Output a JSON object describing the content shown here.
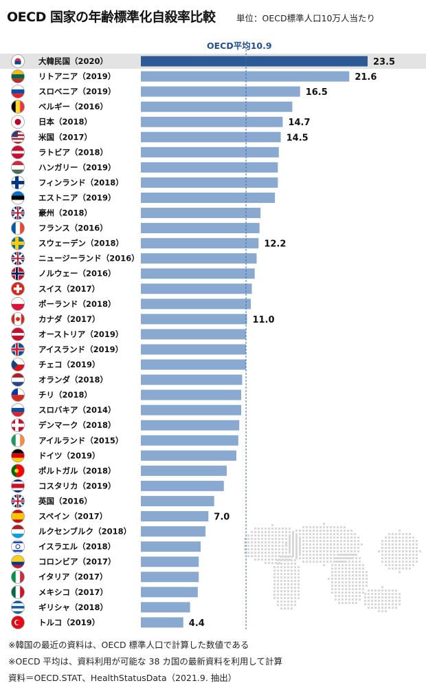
{
  "header": {
    "title": "OECD 国家の年齢標準化自殺率比較",
    "unit": "単位：OECD標準人口10万人当たり",
    "average_label": "OECD平均10.9"
  },
  "notes": [
    "※韓国の最近の資料は、OECD 標準人口で計算した数値である",
    "※OECD 平均は、資料利用が可能な 38 カ国の最新資料を利用して計算",
    "資料＝OECD.STAT、HealthStatusData（2021.9. 抽出）"
  ],
  "chart_data": {
    "type": "bar",
    "orientation": "horizontal",
    "title": "OECD 国家の年齢標準化自殺率比較",
    "unit": "単位：OECD標準人口10万人当たり",
    "average": {
      "label": "OECD平均10.9",
      "value": 10.9
    },
    "xlim": [
      0,
      23.5
    ],
    "grid": false,
    "colors": {
      "bar": "#8aa9d0",
      "highlight_bar": "#2c5a95",
      "highlight_row": "#e3e3e3",
      "average_line": "#3a6fb0"
    },
    "categories": [
      "大韓民国（2020）",
      "リトアニア（2019）",
      "スロベニア（2019）",
      "ベルギー（2016）",
      "日本（2018）",
      "米国（2017）",
      "ラトビア（2018）",
      "ハンガリー（2019）",
      "フィンランド（2018）",
      "エストニア（2019）",
      "豪州（2018）",
      "フランス（2016）",
      "スウェーデン（2018）",
      "ニュージーランド（2016）",
      "ノルウェー（2016）",
      "スイス（2017）",
      "ポーランド（2018）",
      "カナダ（2017）",
      "オーストリア（2019）",
      "アイスランド（2019）",
      "チェコ（2019）",
      "オランダ（2018）",
      "チリ（2018）",
      "スロバキア（2014）",
      "デンマーク（2018）",
      "アイルランド（2015）",
      "ドイツ（2019）",
      "ポルトガル（2018）",
      "コスタリカ（2019）",
      "英国（2016）",
      "スペイン（2017）",
      "ルクセンブルク（2018）",
      "イスラエル（2018）",
      "コロンビア（2017）",
      "イタリア（2017）",
      "メキシコ（2017）",
      "ギリシャ（2018）",
      "トルコ（2019）"
    ],
    "values": [
      23.5,
      21.6,
      16.5,
      15.7,
      14.7,
      14.5,
      14.3,
      14.2,
      14.2,
      13.9,
      12.4,
      12.3,
      12.2,
      12.0,
      11.8,
      11.5,
      11.4,
      11.0,
      10.9,
      10.9,
      10.9,
      10.5,
      10.4,
      10.4,
      10.2,
      10.1,
      9.9,
      8.9,
      8.6,
      7.6,
      7.0,
      6.7,
      6.2,
      6.0,
      6.0,
      5.9,
      5.1,
      4.4
    ],
    "data_labels": {
      "0": "23.5",
      "1": "21.6",
      "2": "16.5",
      "4": "14.7",
      "5": "14.5",
      "12": "12.2",
      "17": "11.0",
      "30": "7.0",
      "37": "4.4"
    },
    "icons": [
      "flag-south-korea-icon",
      "flag-lithuania-icon",
      "flag-slovenia-icon",
      "flag-belgium-icon",
      "flag-japan-icon",
      "flag-usa-icon",
      "flag-latvia-icon",
      "flag-hungary-icon",
      "flag-finland-icon",
      "flag-estonia-icon",
      "flag-australia-icon",
      "flag-france-icon",
      "flag-sweden-icon",
      "flag-new-zealand-icon",
      "flag-norway-icon",
      "flag-switzerland-icon",
      "flag-poland-icon",
      "flag-canada-icon",
      "flag-austria-icon",
      "flag-iceland-icon",
      "flag-czechia-icon",
      "flag-netherlands-icon",
      "flag-chile-icon",
      "flag-slovakia-icon",
      "flag-denmark-icon",
      "flag-ireland-icon",
      "flag-germany-icon",
      "flag-portugal-icon",
      "flag-costa-rica-icon",
      "flag-uk-icon",
      "flag-spain-icon",
      "flag-luxembourg-icon",
      "flag-israel-icon",
      "flag-colombia-icon",
      "flag-italy-icon",
      "flag-mexico-icon",
      "flag-greece-icon",
      "flag-turkey-icon"
    ]
  }
}
